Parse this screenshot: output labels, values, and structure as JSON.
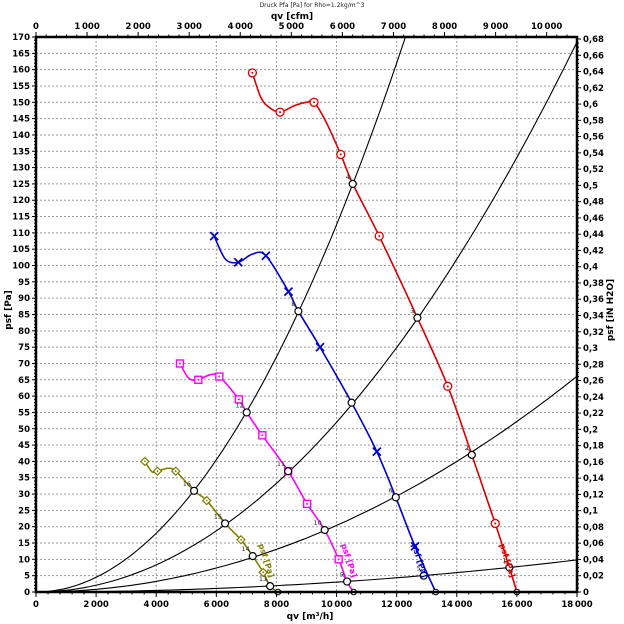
{
  "title": "Druck Pfa [Pa] for Rho=1.2kg/m^3",
  "colors": {
    "red": "#dd0000",
    "blue": "#0000cc",
    "magenta": "#ff00ff",
    "olive": "#808000",
    "black": "#000000",
    "grid": "#999999",
    "op_number": "#333333"
  },
  "chart_data": {
    "type": "line",
    "title": "Druck Pfa [Pa] for Rho=1.2kg/m^3",
    "grid": "on",
    "axes": {
      "x_bottom": {
        "label": "qv [m³/h]",
        "min": 0,
        "max": 18000,
        "tick_step": 2000,
        "minor_step": 400,
        "thousands_sep": " "
      },
      "x_top": {
        "label": "qv [cfm]",
        "min": 0,
        "max": 10594,
        "tick_step": 1000,
        "minor_step": 200,
        "m3h_per_cfm": 1.699
      },
      "y_left": {
        "label": "psf [Pa]",
        "min": 0,
        "max": 170,
        "tick_step": 5,
        "minor_step": 1
      },
      "y_right": {
        "label": "psf [iN H2O]",
        "min": 0,
        "max": 0.68,
        "tick_step": 0.02,
        "minor_step": 0.005,
        "pa_per_unit": 249.089,
        "decimal_comma": true
      }
    },
    "series": [
      {
        "id": "fan-curve-1",
        "color": "#dd0000",
        "marker": "circle-dot",
        "curve_label": "psf [Pa]",
        "label_anchor": {
          "q": 15420,
          "p": 14.5
        },
        "label_angle": 72,
        "end_q": 16000,
        "markers": [
          [
            7200,
            159
          ],
          [
            8120,
            147
          ],
          [
            9250,
            150
          ],
          [
            10140,
            134
          ],
          [
            11420,
            109
          ],
          [
            13700,
            63
          ],
          [
            15280,
            21
          ]
        ],
        "path": [
          [
            7200,
            159
          ],
          [
            7480,
            151.5
          ],
          [
            7750,
            148.5
          ],
          [
            8120,
            147
          ],
          [
            8600,
            149
          ],
          [
            9000,
            150
          ],
          [
            9250,
            150
          ],
          [
            9650,
            144
          ],
          [
            10140,
            134
          ],
          [
            10540,
            125
          ],
          [
            11420,
            109
          ],
          [
            12690,
            84
          ],
          [
            13700,
            63
          ],
          [
            14500,
            42
          ],
          [
            15280,
            21
          ],
          [
            15750,
            7.5
          ],
          [
            16000,
            0
          ]
        ]
      },
      {
        "id": "fan-curve-2",
        "color": "#0000cc",
        "marker": "x",
        "curve_label": "psf [Pa]",
        "label_anchor": {
          "q": 12500,
          "p": 14.5
        },
        "label_angle": 72,
        "end_q": 13300,
        "markers": [
          [
            5930,
            109
          ],
          [
            6730,
            101
          ],
          [
            7650,
            103
          ],
          [
            8400,
            92
          ],
          [
            9450,
            75
          ],
          [
            11340,
            43
          ],
          [
            12610,
            14
          ]
        ],
        "path": [
          [
            5930,
            109
          ],
          [
            6300,
            102
          ],
          [
            6730,
            101
          ],
          [
            7200,
            103.5
          ],
          [
            7650,
            103
          ],
          [
            8400,
            92
          ],
          [
            8730,
            86
          ],
          [
            9450,
            75
          ],
          [
            10500,
            58
          ],
          [
            11340,
            43
          ],
          [
            11970,
            29
          ],
          [
            12610,
            14
          ],
          [
            13300,
            0
          ]
        ]
      },
      {
        "id": "fan-curve-3",
        "color": "#ff00ff",
        "marker": "square-dot",
        "curve_label": "psf [Pa]",
        "label_anchor": {
          "q": 10150,
          "p": 14.5
        },
        "label_angle": 72,
        "end_q": 10570,
        "markers": [
          [
            4790,
            70
          ],
          [
            5400,
            65
          ],
          [
            6100,
            66
          ],
          [
            6750,
            59
          ],
          [
            7530,
            48
          ],
          [
            8390,
            37
          ],
          [
            9020,
            27
          ],
          [
            10070,
            10
          ]
        ],
        "path": [
          [
            4790,
            70
          ],
          [
            5080,
            65.5
          ],
          [
            5400,
            65
          ],
          [
            5780,
            66.5
          ],
          [
            6100,
            66
          ],
          [
            6750,
            59
          ],
          [
            7010,
            55
          ],
          [
            7530,
            48
          ],
          [
            8390,
            37
          ],
          [
            9020,
            27
          ],
          [
            9605,
            19
          ],
          [
            10070,
            10
          ],
          [
            10350,
            3.2
          ],
          [
            10570,
            0
          ]
        ]
      },
      {
        "id": "fan-curve-4",
        "color": "#808000",
        "marker": "diamond-dot",
        "curve_label": "psf [Pa]",
        "label_anchor": {
          "q": 7400,
          "p": 14.5
        },
        "label_angle": 72,
        "end_q": 8050,
        "markers": [
          [
            3620,
            40
          ],
          [
            4040,
            37
          ],
          [
            4650,
            37
          ],
          [
            5680,
            28
          ],
          [
            6820,
            16
          ],
          [
            7560,
            6
          ]
        ],
        "path": [
          [
            3620,
            40
          ],
          [
            3860,
            36.8
          ],
          [
            4040,
            37
          ],
          [
            4380,
            37.9
          ],
          [
            4650,
            37
          ],
          [
            5260,
            31
          ],
          [
            5680,
            28
          ],
          [
            6290,
            21
          ],
          [
            6820,
            16
          ],
          [
            7210,
            11
          ],
          [
            7560,
            6
          ],
          [
            7790,
            1.8
          ],
          [
            8050,
            0
          ]
        ]
      }
    ],
    "system_curves": [
      {
        "id": "system-curve-A",
        "k": 1.125e-06
      },
      {
        "id": "system-curve-B",
        "k": 5.2e-07
      },
      {
        "id": "system-curve-C",
        "k": 2.04e-07
      },
      {
        "id": "system-curve-D",
        "k": 3.03e-08
      }
    ],
    "operating_points": [
      {
        "n": 1,
        "q": 15750,
        "p": 7.5
      },
      {
        "n": 2,
        "q": 14500,
        "p": 42
      },
      {
        "n": 3,
        "q": 12690,
        "p": 84
      },
      {
        "n": 4,
        "q": 10540,
        "p": 125
      },
      {
        "n": 5,
        "q": 12900,
        "p": 5
      },
      {
        "n": 6,
        "q": 11970,
        "p": 29
      },
      {
        "n": 7,
        "q": 10500,
        "p": 58
      },
      {
        "n": 8,
        "q": 8730,
        "p": 86
      },
      {
        "n": 9,
        "q": 10350,
        "p": 3.2
      },
      {
        "n": 10,
        "q": 9605,
        "p": 19
      },
      {
        "n": 11,
        "q": 8390,
        "p": 37
      },
      {
        "n": 12,
        "q": 7010,
        "p": 55
      },
      {
        "n": 13,
        "q": 7790,
        "p": 1.8
      },
      {
        "n": 14,
        "q": 7210,
        "p": 11
      },
      {
        "n": 15,
        "q": 6290,
        "p": 21
      },
      {
        "n": 16,
        "q": 5260,
        "p": 31
      }
    ]
  }
}
